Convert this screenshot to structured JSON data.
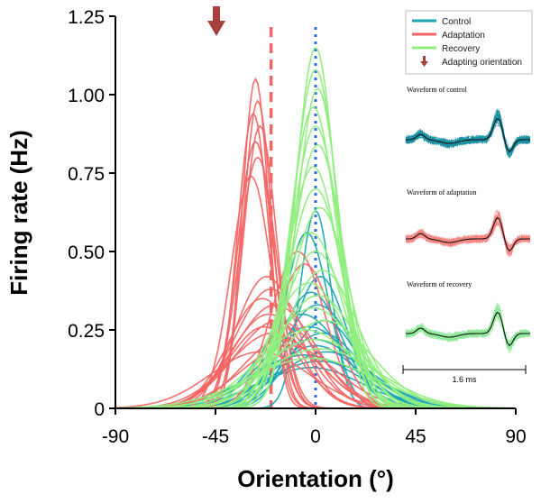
{
  "chart_data": {
    "type": "line",
    "title": "",
    "xlabel": "Orientation (°)",
    "ylabel": "Firing rate (Hz)",
    "xlim": [
      -90,
      90
    ],
    "ylim": [
      0,
      1.25
    ],
    "xticks": [
      "-90",
      "-45",
      "0",
      "45",
      "90"
    ],
    "yticks": [
      "0",
      "0.25",
      "0.50",
      "0.75",
      "1.00",
      "1.25"
    ],
    "adapting_orientation": -45,
    "reference_lines": [
      {
        "series": "Adaptation",
        "x": -20,
        "style": "dashed"
      },
      {
        "series": "Control",
        "x": 0,
        "style": "dotted"
      }
    ],
    "series": [
      {
        "name": "Control",
        "color": "#1aa5b5",
        "curves": [
          {
            "center": 0,
            "amplitude": 0.63,
            "width": 7
          },
          {
            "center": -4,
            "amplitude": 0.56,
            "width": 10
          },
          {
            "center": 2,
            "amplitude": 0.42,
            "width": 12
          },
          {
            "center": -2,
            "amplitude": 0.37,
            "width": 14
          },
          {
            "center": 1,
            "amplitude": 0.33,
            "width": 16
          },
          {
            "center": -6,
            "amplitude": 0.3,
            "width": 18
          },
          {
            "center": 4,
            "amplitude": 0.28,
            "width": 15
          },
          {
            "center": -3,
            "amplitude": 0.26,
            "width": 20
          },
          {
            "center": 3,
            "amplitude": 0.24,
            "width": 17
          },
          {
            "center": -1,
            "amplitude": 0.22,
            "width": 22
          },
          {
            "center": 0,
            "amplitude": 0.2,
            "width": 19
          },
          {
            "center": 5,
            "amplitude": 0.18,
            "width": 21
          },
          {
            "center": -5,
            "amplitude": 0.17,
            "width": 24
          },
          {
            "center": 2,
            "amplitude": 0.15,
            "width": 25
          },
          {
            "center": -2,
            "amplitude": 0.13,
            "width": 23
          }
        ]
      },
      {
        "name": "Adaptation",
        "color": "#f26665",
        "curves": [
          {
            "center": -27,
            "amplitude": 1.05,
            "width": 6
          },
          {
            "center": -26,
            "amplitude": 0.98,
            "width": 6.5
          },
          {
            "center": -28,
            "amplitude": 0.94,
            "width": 7
          },
          {
            "center": -25,
            "amplitude": 0.9,
            "width": 7.5
          },
          {
            "center": -27,
            "amplitude": 0.85,
            "width": 8
          },
          {
            "center": -26,
            "amplitude": 0.8,
            "width": 8.5
          },
          {
            "center": -29,
            "amplitude": 0.74,
            "width": 9
          },
          {
            "center": -22,
            "amplitude": 0.42,
            "width": 14
          },
          {
            "center": -20,
            "amplitude": 0.38,
            "width": 16
          },
          {
            "center": -24,
            "amplitude": 0.35,
            "width": 15
          },
          {
            "center": -18,
            "amplitude": 0.33,
            "width": 18
          },
          {
            "center": -8,
            "amplitude": 0.5,
            "width": 12
          },
          {
            "center": -5,
            "amplitude": 0.46,
            "width": 13
          },
          {
            "center": -21,
            "amplitude": 0.3,
            "width": 17
          },
          {
            "center": -17,
            "amplitude": 0.28,
            "width": 19
          },
          {
            "center": -23,
            "amplitude": 0.26,
            "width": 16
          },
          {
            "center": -19,
            "amplitude": 0.24,
            "width": 20
          },
          {
            "center": -15,
            "amplitude": 0.22,
            "width": 18
          },
          {
            "center": -12,
            "amplitude": 0.2,
            "width": 21
          },
          {
            "center": -25,
            "amplitude": 0.18,
            "width": 22
          }
        ]
      },
      {
        "name": "Recovery",
        "color": "#90ee7e",
        "curves": [
          {
            "center": 0,
            "amplitude": 1.15,
            "width": 9
          },
          {
            "center": 0,
            "amplitude": 1.08,
            "width": 10
          },
          {
            "center": 1,
            "amplitude": 1.02,
            "width": 9.5
          },
          {
            "center": -1,
            "amplitude": 0.96,
            "width": 10.5
          },
          {
            "center": 0,
            "amplitude": 0.9,
            "width": 11
          },
          {
            "center": 1,
            "amplitude": 0.84,
            "width": 11.5
          },
          {
            "center": -1,
            "amplitude": 0.77,
            "width": 12
          },
          {
            "center": 0,
            "amplitude": 0.7,
            "width": 12.5
          },
          {
            "center": 2,
            "amplitude": 0.64,
            "width": 13
          },
          {
            "center": -2,
            "amplitude": 0.56,
            "width": 14
          },
          {
            "center": 0,
            "amplitude": 0.5,
            "width": 15
          },
          {
            "center": 3,
            "amplitude": 0.44,
            "width": 16
          },
          {
            "center": -3,
            "amplitude": 0.4,
            "width": 17
          },
          {
            "center": 1,
            "amplitude": 0.36,
            "width": 18
          },
          {
            "center": -1,
            "amplitude": 0.32,
            "width": 20
          },
          {
            "center": 4,
            "amplitude": 0.28,
            "width": 21
          },
          {
            "center": -4,
            "amplitude": 0.25,
            "width": 22
          },
          {
            "center": 0,
            "amplitude": 0.22,
            "width": 24
          },
          {
            "center": 2,
            "amplitude": 0.19,
            "width": 26
          },
          {
            "center": -2,
            "amplitude": 0.16,
            "width": 28
          }
        ]
      }
    ],
    "legend": {
      "placement": "top-right",
      "entries": [
        "Control",
        "Adaptation",
        "Recovery",
        "Adapting orientation"
      ]
    },
    "insets": {
      "control_label": "Waveform of control",
      "adaptation_label": "Waveform of adaptation",
      "recovery_label": "Waveform of recovery",
      "scale_label": "1.6 ms"
    }
  }
}
